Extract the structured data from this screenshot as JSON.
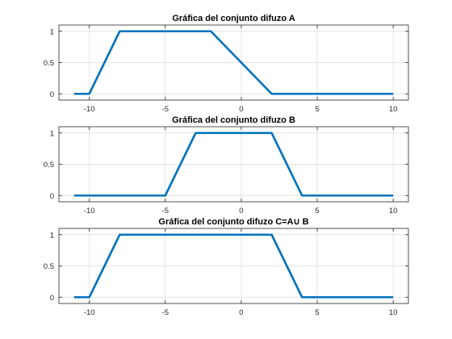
{
  "chart_data": [
    {
      "type": "line",
      "title": "Gráfica del conjunto difuzo A",
      "xlabel": "",
      "ylabel": "",
      "xlim": [
        -12,
        11
      ],
      "ylim": [
        -0.1,
        1.1
      ],
      "xticks": [
        -10,
        -5,
        0,
        5,
        10
      ],
      "xtick_labels": [
        "-10",
        "-5",
        "0",
        "5",
        "10"
      ],
      "yticks": [
        0,
        0.5,
        1
      ],
      "ytick_labels": [
        "0",
        "0.5",
        "1"
      ],
      "grid": true,
      "line_color": "#0072bd",
      "x": [
        -11,
        -10,
        -8,
        -2,
        2,
        10
      ],
      "y": [
        0,
        0,
        1,
        1,
        0,
        0
      ]
    },
    {
      "type": "line",
      "title": "Gráfica del conjunto difuzo B",
      "xlabel": "",
      "ylabel": "",
      "xlim": [
        -12,
        11
      ],
      "ylim": [
        -0.1,
        1.1
      ],
      "xticks": [
        -10,
        -5,
        0,
        5,
        10
      ],
      "xtick_labels": [
        "-10",
        "-5",
        "0",
        "5",
        "10"
      ],
      "yticks": [
        0,
        0.5,
        1
      ],
      "ytick_labels": [
        "0",
        "0.5",
        "1"
      ],
      "grid": true,
      "line_color": "#0072bd",
      "x": [
        -11,
        -5,
        -3,
        2,
        4,
        10
      ],
      "y": [
        0,
        0,
        1,
        1,
        0,
        0
      ]
    },
    {
      "type": "line",
      "title": "Gráfica del conjunto difuzo C=A∪ B",
      "xlabel": "",
      "ylabel": "",
      "xlim": [
        -12,
        11
      ],
      "ylim": [
        -0.1,
        1.1
      ],
      "xticks": [
        -10,
        -5,
        0,
        5,
        10
      ],
      "xtick_labels": [
        "-10",
        "-5",
        "0",
        "5",
        "10"
      ],
      "yticks": [
        0,
        0.5,
        1
      ],
      "ytick_labels": [
        "0",
        "0.5",
        "1"
      ],
      "grid": true,
      "line_color": "#0072bd",
      "x": [
        -11,
        -10,
        -8,
        2,
        4,
        10
      ],
      "y": [
        0,
        0,
        1,
        1,
        0,
        0
      ]
    }
  ]
}
